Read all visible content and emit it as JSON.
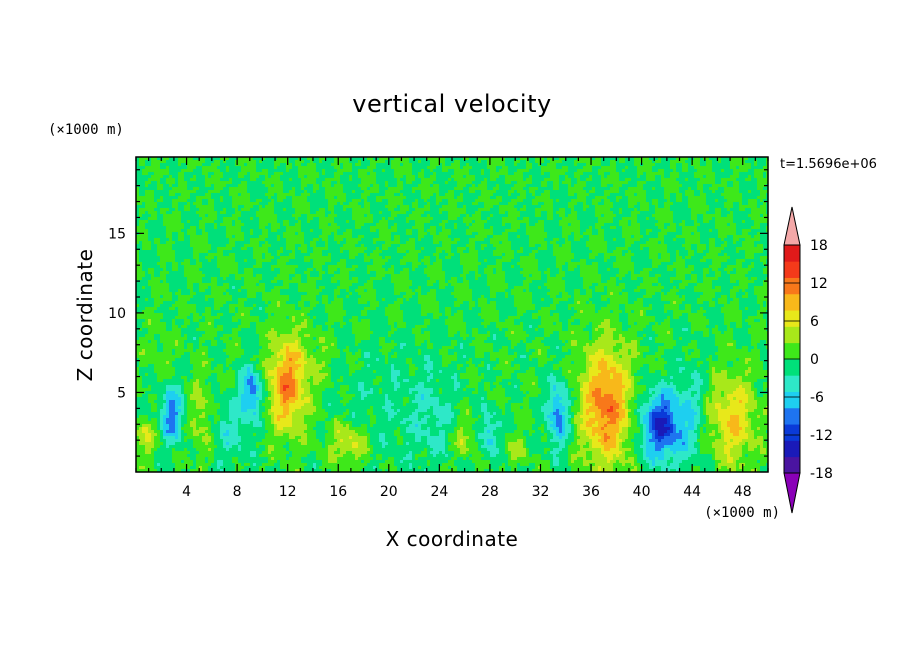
{
  "chart_data": {
    "type": "heatmap",
    "title": "vertical velocity",
    "xlabel": "X coordinate",
    "ylabel": "Z coordinate",
    "x_unit": "(×1000 m)",
    "y_unit": "(×1000 m)",
    "time_label": "t=1.5696e+06",
    "xlim": [
      0,
      50
    ],
    "ylim": [
      0,
      19.8
    ],
    "x_ticks": [
      4,
      8,
      12,
      16,
      20,
      24,
      28,
      32,
      36,
      40,
      44,
      48
    ],
    "y_ticks": [
      5,
      10,
      15
    ],
    "colorbar": {
      "levels": [
        -21,
        -18,
        -15,
        -12,
        -9,
        -6,
        -3,
        0,
        3,
        6,
        9,
        12,
        15,
        18,
        21
      ],
      "tick_values": [
        -18,
        -12,
        -6,
        0,
        6,
        12,
        18
      ],
      "colors": [
        "#8a00b8",
        "#4a14a0",
        "#1a1ab8",
        "#0a3ad8",
        "#1e74f0",
        "#1ecff0",
        "#2ee8c8",
        "#00e07a",
        "#3ee81a",
        "#a8e81a",
        "#e8e81a",
        "#f8b81a",
        "#f8781a",
        "#f43a1a",
        "#e01a1a",
        "#f4a8a8"
      ]
    },
    "features": [
      {
        "x": 12.0,
        "z": 5.5,
        "sx": 1.1,
        "sz": 2.1,
        "w": 13
      },
      {
        "x": 37.2,
        "z": 4.2,
        "sx": 1.4,
        "sz": 2.6,
        "w": 14
      },
      {
        "x": 47.2,
        "z": 3.3,
        "sx": 1.3,
        "sz": 2.0,
        "w": 9
      },
      {
        "x": 16.8,
        "z": 1.8,
        "sx": 1.1,
        "sz": 0.9,
        "w": 7
      },
      {
        "x": 5.2,
        "z": 3.5,
        "sx": 0.6,
        "sz": 1.8,
        "w": 5
      },
      {
        "x": 0.6,
        "z": 2.2,
        "sx": 0.6,
        "sz": 0.8,
        "w": 6
      },
      {
        "x": 26.0,
        "z": 2.1,
        "sx": 0.6,
        "sz": 0.8,
        "w": 5
      },
      {
        "x": 30.2,
        "z": 1.5,
        "sx": 0.6,
        "sz": 0.6,
        "w": 4
      },
      {
        "x": 2.8,
        "z": 3.6,
        "sx": 0.6,
        "sz": 1.2,
        "w": -11
      },
      {
        "x": 9.2,
        "z": 5.0,
        "sx": 0.6,
        "sz": 1.1,
        "w": -11
      },
      {
        "x": 33.4,
        "z": 3.6,
        "sx": 0.6,
        "sz": 1.4,
        "w": -11
      },
      {
        "x": 41.6,
        "z": 2.9,
        "sx": 1.2,
        "sz": 1.5,
        "w": -15
      },
      {
        "x": 28.0,
        "z": 2.4,
        "sx": 0.5,
        "sz": 1.0,
        "w": -7
      },
      {
        "x": 7.5,
        "z": 2.6,
        "sx": 1.2,
        "sz": 1.5,
        "w": -4
      },
      {
        "x": 20.0,
        "z": 4.0,
        "sx": 3.0,
        "sz": 3.0,
        "w": -2
      },
      {
        "x": 23.5,
        "z": 3.5,
        "sx": 1.2,
        "sz": 2.0,
        "w": -3
      },
      {
        "x": 44.0,
        "z": 3.8,
        "sx": 0.8,
        "sz": 2.4,
        "w": -4
      },
      {
        "x": 1.8,
        "z": 7.5,
        "sx": 0.8,
        "sz": 1.0,
        "w": 2
      },
      {
        "x": 14.5,
        "z": 7.0,
        "sx": 1.0,
        "sz": 1.2,
        "w": 2
      }
    ]
  }
}
